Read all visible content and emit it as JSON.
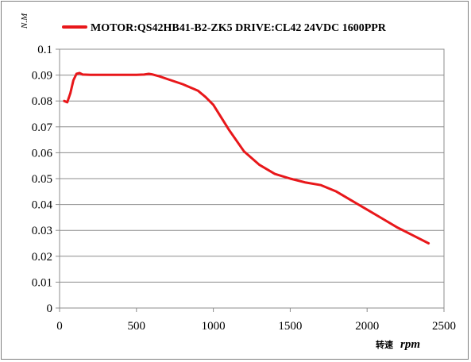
{
  "chart_data": {
    "type": "line",
    "y_unit_label": "N.M",
    "xlabel_prefix": "转速",
    "xlabel_unit": "rpm",
    "xlim": [
      0,
      2500
    ],
    "ylim": [
      0,
      0.1
    ],
    "x_ticks": [
      "0",
      "500",
      "1000",
      "1500",
      "2000",
      "2500"
    ],
    "y_ticks": [
      "0",
      "0.01",
      "0.02",
      "0.03",
      "0.04",
      "0.05",
      "0.06",
      "0.07",
      "0.08",
      "0.09",
      "0.1"
    ],
    "grid": true,
    "legend_position": "top",
    "series": [
      {
        "name": "MOTOR:QS42HB41-B2-ZK5 DRIVE:CL42 24VDC 1600PPR",
        "color": "#e8171a",
        "x": [
          30,
          50,
          70,
          90,
          110,
          130,
          150,
          200,
          300,
          400,
          500,
          550,
          580,
          600,
          650,
          700,
          800,
          900,
          950,
          1000,
          1100,
          1200,
          1300,
          1400,
          1500,
          1600,
          1700,
          1800,
          1900,
          2000,
          2100,
          2200,
          2300,
          2400
        ],
        "y": [
          0.08,
          0.0795,
          0.083,
          0.088,
          0.0905,
          0.0908,
          0.0902,
          0.0901,
          0.0901,
          0.0901,
          0.0901,
          0.0902,
          0.0905,
          0.0903,
          0.0895,
          0.0885,
          0.0865,
          0.084,
          0.0815,
          0.0785,
          0.069,
          0.0605,
          0.0553,
          0.0518,
          0.05,
          0.0485,
          0.0475,
          0.045,
          0.0415,
          0.038,
          0.0345,
          0.031,
          0.028,
          0.025
        ]
      }
    ]
  }
}
